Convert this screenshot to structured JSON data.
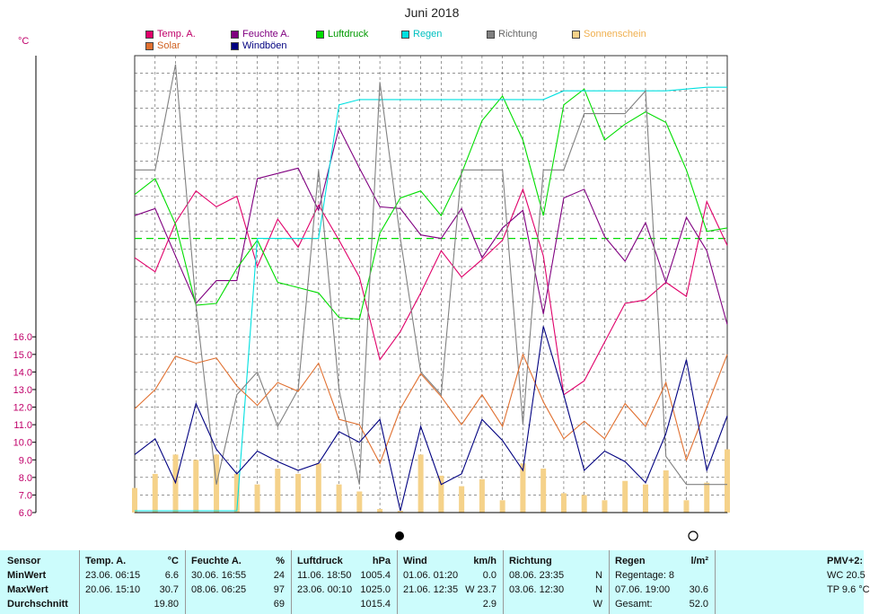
{
  "title": "Juni 2018",
  "unit": "°C",
  "legend": [
    {
      "label": "Temp. A.",
      "color": "#e0006a"
    },
    {
      "label": "Feuchte A.",
      "color": "#800080"
    },
    {
      "label": "Luftdruck",
      "color": "#00dd00"
    },
    {
      "label": "Regen",
      "color": "#00e0e0"
    },
    {
      "label": "Richtung",
      "color": "#808080"
    },
    {
      "label": "Sonnenschein",
      "color": "#f5d28a"
    },
    {
      "label": "Solar",
      "color": "#e07030"
    },
    {
      "label": "Windböen",
      "color": "#000080"
    }
  ],
  "chart_data": {
    "type": "line",
    "title": "Juni 2018",
    "ylabel": "°C",
    "yticks": [
      "6.0",
      "7.0",
      "8.0",
      "9.0",
      "10.0",
      "11.0",
      "12.0",
      "13.0",
      "14.0",
      "15.0",
      "16.0"
    ],
    "ylim": [
      6.0,
      32.0
    ],
    "x": [
      1,
      2,
      3,
      4,
      5,
      6,
      7,
      8,
      9,
      10,
      11,
      12,
      13,
      14,
      15,
      16,
      17,
      18,
      19,
      20,
      21,
      22,
      23,
      24,
      25,
      26,
      27,
      28,
      29,
      30
    ],
    "grid": true,
    "series": [
      {
        "name": "Temp. A.",
        "color": "#e0006a",
        "values": [
          20.5,
          19.7,
          22.5,
          24.3,
          23.4,
          24.0,
          20.0,
          22.7,
          21.1,
          23.5,
          21.5,
          19.4,
          14.7,
          16.3,
          18.5,
          20.9,
          19.4,
          20.4,
          21.5,
          24.4,
          20.6,
          12.7,
          13.5,
          15.7,
          17.9,
          18.1,
          19.1,
          18.3,
          23.7,
          21.2
        ]
      },
      {
        "name": "Feuchte A.",
        "color": "#800080",
        "values": [
          22.9,
          23.3,
          20.6,
          17.9,
          19.2,
          19.2,
          25.0,
          25.3,
          25.6,
          23.2,
          27.9,
          25.6,
          23.4,
          23.3,
          21.8,
          21.6,
          23.3,
          20.5,
          22.2,
          23.2,
          17.3,
          23.9,
          24.4,
          21.7,
          20.3,
          22.5,
          19.1,
          22.8,
          20.9,
          16.7
        ]
      },
      {
        "name": "Luftdruck",
        "color": "#00dd00",
        "values": [
          24.1,
          25.0,
          22.4,
          17.8,
          17.9,
          19.9,
          21.5,
          19.1,
          18.8,
          18.5,
          17.1,
          17.0,
          21.9,
          23.9,
          24.3,
          22.9,
          25.3,
          28.3,
          29.7,
          27.2,
          22.9,
          29.2,
          30.1,
          27.2,
          28.1,
          28.8,
          28.2,
          25.5,
          22.0,
          22.2
        ]
      },
      {
        "name": "Regen",
        "color": "#00e0e0",
        "values": [
          6.1,
          6.1,
          6.1,
          6.1,
          6.1,
          6.1,
          21.6,
          21.6,
          21.6,
          21.6,
          29.2,
          29.5,
          29.5,
          29.5,
          29.5,
          29.5,
          29.5,
          29.5,
          29.5,
          29.5,
          29.5,
          30.0,
          30.0,
          30.0,
          30.0,
          30.0,
          30.0,
          30.1,
          30.2,
          30.2
        ]
      },
      {
        "name": "Richtung",
        "color": "#808080",
        "values": [
          25.5,
          25.5,
          31.5,
          17.8,
          7.6,
          12.7,
          14.0,
          10.9,
          13.0,
          25.5,
          13.0,
          7.6,
          30.5,
          21.6,
          14.0,
          12.7,
          25.5,
          25.5,
          25.5,
          11.0,
          25.5,
          25.5,
          28.7,
          28.7,
          28.7,
          30.0,
          9.2,
          7.6,
          7.6,
          7.6
        ]
      },
      {
        "name": "Sonnenschein",
        "color": "#f5d28a",
        "bars": true,
        "values": [
          7.4,
          8.2,
          9.3,
          9.0,
          9.3,
          8.2,
          7.6,
          8.5,
          8.2,
          8.8,
          7.6,
          7.2,
          6.2,
          6.1,
          9.3,
          8.1,
          7.5,
          7.9,
          6.7,
          8.8,
          8.5,
          7.1,
          7.0,
          6.7,
          7.8,
          7.6,
          8.4,
          6.7,
          7.7,
          9.6
        ]
      },
      {
        "name": "Solar",
        "color": "#e07030",
        "values": [
          11.9,
          13.0,
          14.9,
          14.5,
          14.8,
          13.2,
          12.1,
          13.4,
          12.9,
          14.5,
          11.3,
          11.0,
          8.8,
          11.9,
          13.9,
          12.6,
          11.0,
          12.7,
          10.9,
          15.0,
          12.3,
          10.2,
          11.2,
          10.2,
          12.2,
          10.9,
          13.4,
          9.0,
          12.0,
          15.0
        ]
      },
      {
        "name": "Windböen",
        "color": "#000080",
        "values": [
          9.3,
          10.2,
          7.7,
          12.2,
          9.6,
          8.2,
          9.5,
          8.9,
          8.4,
          8.8,
          10.6,
          10.0,
          11.3,
          6.1,
          10.9,
          7.6,
          8.2,
          11.3,
          10.1,
          8.4,
          16.6,
          12.7,
          8.4,
          9.5,
          8.9,
          7.7,
          10.5,
          14.7,
          8.4,
          11.5
        ]
      }
    ],
    "reference_line": {
      "series": "Luftdruck",
      "value": 21.6
    }
  },
  "table": {
    "headers": {
      "sensor": "Sensor",
      "temp": "Temp. A.",
      "temp_unit": "°C",
      "feuchte": "Feuchte A.",
      "feuchte_unit": "%",
      "luft": "Luftdruck",
      "luft_unit": "hPa",
      "wind": "Wind",
      "wind_unit": "km/h",
      "richtung": "Richtung",
      "regen": "Regen",
      "regen_unit": "l/m²",
      "pmv": "PMV+2:"
    },
    "rows": [
      {
        "label": "MinWert",
        "temp_t": "23.06.  06:15",
        "temp_v": "6.6",
        "feu_t": "30.06.  16:55",
        "feu_v": "24",
        "luft_t": "11.06.  18:50",
        "luft_v": "1005.4",
        "wind_t": "01.06.  01:20",
        "wind_v": "0.0",
        "rich_t": "08.06.  23:35",
        "rich_v": "N",
        "regen_t": "Regentage: 8",
        "regen_v": "",
        "pmv": "WC 20.5"
      },
      {
        "label": "MaxWert",
        "temp_t": "20.06.  15:10",
        "temp_v": "30.7",
        "feu_t": "08.06.  06:25",
        "feu_v": "97",
        "luft_t": "23.06.  00:10",
        "luft_v": "1025.0",
        "wind_t": "21.06.  12:35",
        "wind_v": "W 23.7",
        "rich_t": "03.06.  12:30",
        "rich_v": "N",
        "regen_t": "07.06.  19:00",
        "regen_v": "30.6",
        "pmv": "TP 9.6 °C"
      },
      {
        "label": "Durchschnitt",
        "temp_t": "",
        "temp_v": "19.80",
        "feu_t": "",
        "feu_v": "69",
        "luft_t": "",
        "luft_v": "1015.4",
        "wind_t": "",
        "wind_v": "2.9",
        "rich_t": "",
        "rich_v": "W",
        "regen_t": "Gesamt:",
        "regen_v": "52.0",
        "pmv": ""
      }
    ]
  }
}
